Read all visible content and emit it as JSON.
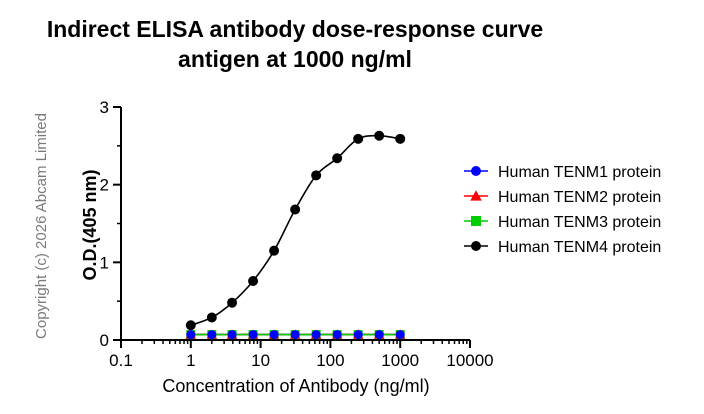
{
  "copyright": "Copyright (c) 2026 Abcam Limited",
  "chart_data": {
    "type": "scatter",
    "title_lines": [
      "Indirect ELISA antibody dose-response curve",
      "antigen at 1000 ng/ml"
    ],
    "xlabel": "Concentration of Antibody (ng/ml)",
    "ylabel": "O.D.(405 nm)",
    "xscale": "log",
    "xlim": [
      0.1,
      10000
    ],
    "ylim": [
      0,
      3
    ],
    "x_ticks": [
      0.1,
      1,
      10,
      100,
      1000,
      10000
    ],
    "x_tick_labels": [
      "0.1",
      "1",
      "10",
      "100",
      "1000",
      "10000"
    ],
    "y_ticks": [
      0,
      1,
      2,
      3
    ],
    "y_tick_labels": [
      "0",
      "1",
      "2",
      "3"
    ],
    "grid": false,
    "legend_position": "right",
    "series": [
      {
        "name": "Human TENM1 protein",
        "color": "#0000ff",
        "marker": "circle",
        "x": [
          1,
          2,
          3.9,
          7.8,
          15.6,
          31.25,
          62.5,
          125,
          250,
          500,
          1000
        ],
        "y": [
          0.07,
          0.07,
          0.07,
          0.07,
          0.07,
          0.07,
          0.07,
          0.07,
          0.07,
          0.07,
          0.07
        ]
      },
      {
        "name": "Human TENM2 protein",
        "color": "#ff0000",
        "marker": "triangle",
        "x": [
          1,
          2,
          3.9,
          7.8,
          15.6,
          31.25,
          62.5,
          125,
          250,
          500,
          1000
        ],
        "y": [
          0.07,
          0.07,
          0.07,
          0.07,
          0.07,
          0.07,
          0.07,
          0.07,
          0.07,
          0.07,
          0.07
        ]
      },
      {
        "name": "Human TENM3 protein",
        "color": "#00cc00",
        "marker": "square",
        "x": [
          1,
          2,
          3.9,
          7.8,
          15.6,
          31.25,
          62.5,
          125,
          250,
          500,
          1000
        ],
        "y": [
          0.07,
          0.07,
          0.07,
          0.07,
          0.07,
          0.07,
          0.07,
          0.07,
          0.07,
          0.07,
          0.07
        ]
      },
      {
        "name": "Human TENM4 protein",
        "color": "#000000",
        "marker": "circle",
        "x": [
          1,
          2,
          3.9,
          7.8,
          15.6,
          31.25,
          62.5,
          125,
          250,
          500,
          1000
        ],
        "y": [
          0.19,
          0.29,
          0.48,
          0.76,
          1.15,
          1.68,
          2.12,
          2.34,
          2.59,
          2.63,
          2.59
        ]
      }
    ]
  }
}
